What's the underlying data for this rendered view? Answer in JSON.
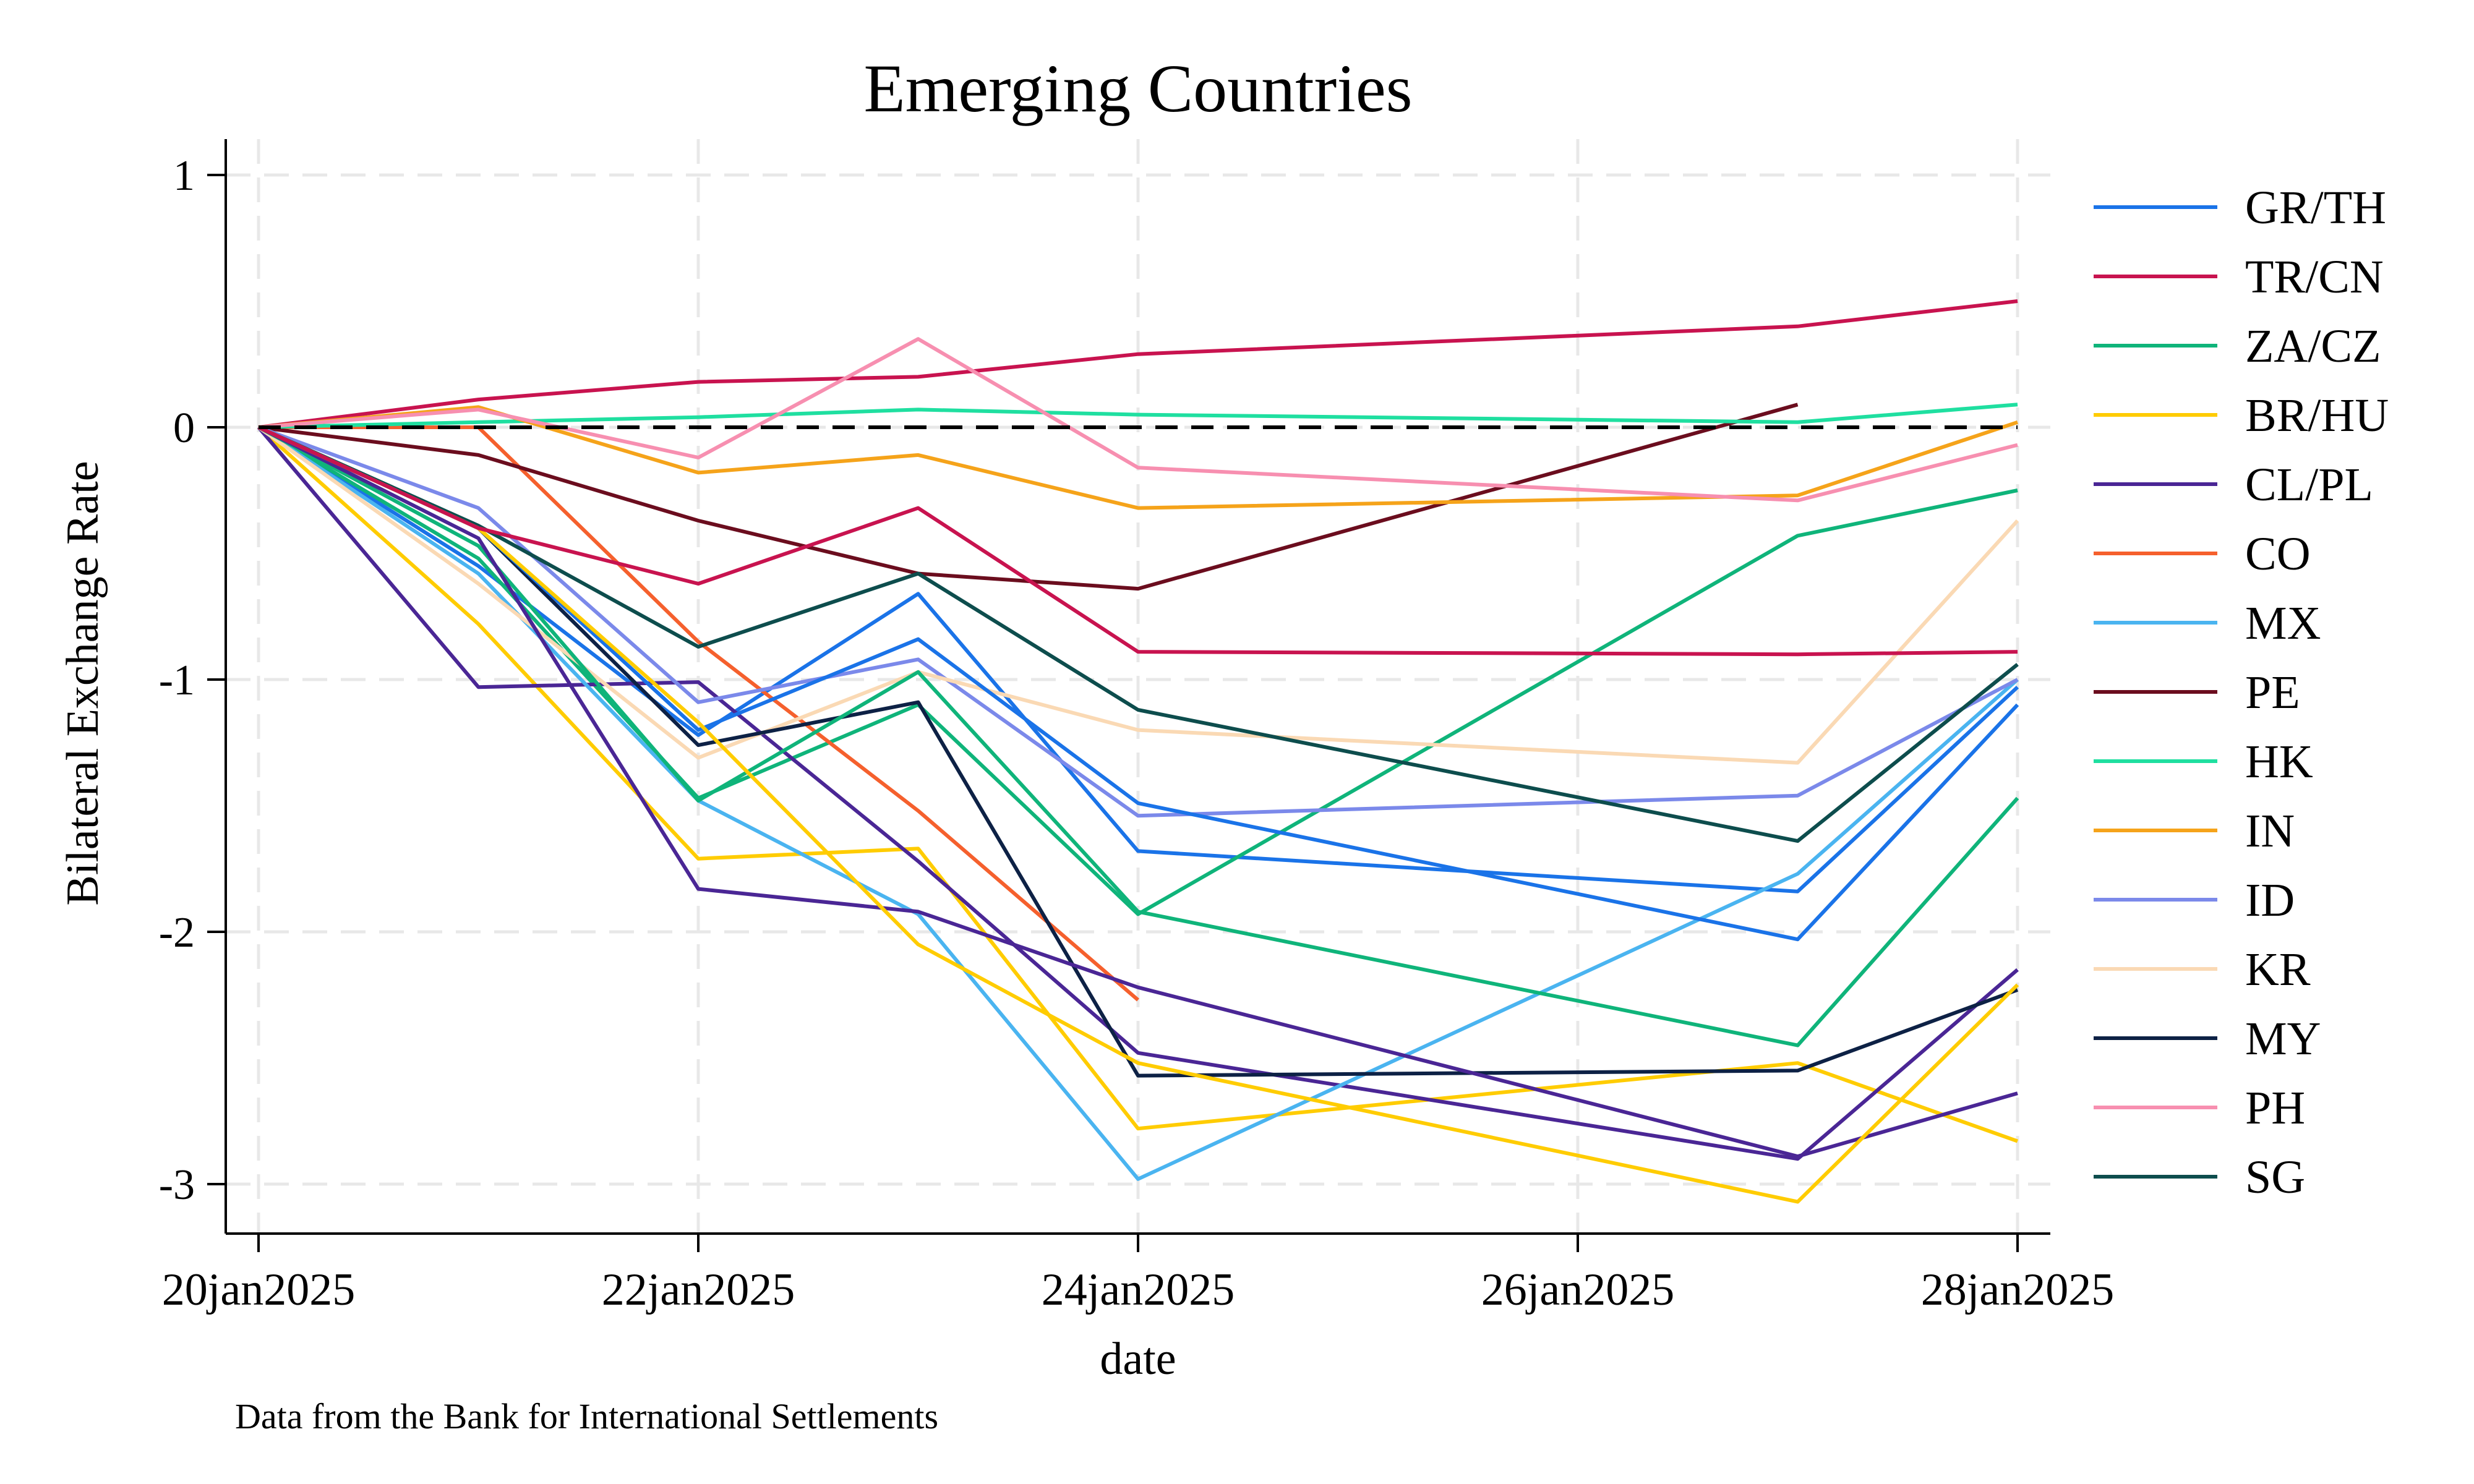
{
  "chart_data": {
    "type": "line",
    "title": "Emerging Countries",
    "xlabel": "date",
    "ylabel": "Bilateral Exchange Rate",
    "note": "Data from the Bank for International Settlements",
    "x": [
      "20jan2025",
      "21jan2025",
      "22jan2025",
      "23jan2025",
      "24jan2025",
      "27jan2025",
      "28jan2025"
    ],
    "xticks": [
      {
        "date": "20jan2025",
        "label": "20jan2025"
      },
      {
        "date": "22jan2025",
        "label": "22jan2025"
      },
      {
        "date": "24jan2025",
        "label": "24jan2025"
      },
      {
        "date": "26jan2025",
        "label": "26jan2025"
      },
      {
        "date": "28jan2025",
        "label": "28jan2025"
      }
    ],
    "yticks": [
      1,
      0,
      -1,
      -2,
      -3
    ],
    "ytick_labels": [
      "1",
      "0",
      "-1",
      "-2",
      "-3"
    ],
    "xlim": [
      "20jan2025",
      "28jan2025"
    ],
    "ylim": [
      -3.2,
      1.15
    ],
    "reference_line": {
      "y": 0,
      "style": "dashed",
      "color": "#000000"
    },
    "grid": true,
    "legend": "right",
    "series": [
      {
        "name": "GR/TH",
        "color": "#1a73e8",
        "values": [
          0,
          -0.55,
          -1.22,
          -0.66,
          -1.68,
          -1.84,
          -1.03
        ]
      },
      {
        "name": "TR/CN",
        "color": "#c8134f",
        "values": [
          0,
          0.11,
          0.18,
          0.2,
          0.29,
          0.4,
          0.5
        ]
      },
      {
        "name": "ZA/CZ",
        "color": "#0fb47a",
        "values": [
          0,
          -0.52,
          -1.47,
          -1.1,
          -1.93,
          -0.43,
          -0.25
        ]
      },
      {
        "name": "BR/HU",
        "color": "#ffcc00",
        "values": [
          0,
          -0.78,
          -1.71,
          -1.67,
          -2.78,
          -2.52,
          -2.83
        ]
      },
      {
        "name": "CL/PL",
        "color": "#4a2695",
        "values": [
          0,
          -1.03,
          -1.01,
          -1.72,
          -2.48,
          -2.9,
          -2.15
        ]
      },
      {
        "name": "CO",
        "color": "#f5602d",
        "values": [
          0,
          0.0,
          -0.85,
          -1.52,
          -2.27,
          null,
          null
        ]
      },
      {
        "name": "MX",
        "color": "#4ab4f0",
        "values": [
          0,
          -0.58,
          -1.48,
          -1.93,
          -2.98,
          -1.77,
          -1.0
        ]
      },
      {
        "name": "PE",
        "color": "#6b0d1e",
        "values": [
          0,
          -0.11,
          -0.37,
          -0.58,
          -0.64,
          0.09,
          null
        ]
      },
      {
        "name": "HK",
        "color": "#1fdfa0",
        "values": [
          0,
          0.02,
          0.04,
          0.07,
          0.05,
          0.02,
          0.09
        ]
      },
      {
        "name": "IN",
        "color": "#f5a31a",
        "values": [
          0,
          0.08,
          -0.18,
          -0.11,
          -0.32,
          -0.27,
          0.02
        ]
      },
      {
        "name": "ID",
        "color": "#7b89ea",
        "values": [
          0,
          -0.32,
          -1.09,
          -0.92,
          -1.54,
          -1.46,
          -1.0
        ]
      },
      {
        "name": "KR",
        "color": "#fad9b4",
        "values": [
          0,
          -0.62,
          -1.31,
          -0.97,
          -1.2,
          -1.33,
          -0.37
        ]
      },
      {
        "name": "MY",
        "color": "#0d2145",
        "values": [
          0,
          -0.4,
          -1.26,
          -1.09,
          -2.57,
          -2.55,
          -2.23
        ]
      },
      {
        "name": "PH",
        "color": "#f78fb0",
        "values": [
          0,
          0.07,
          -0.12,
          0.35,
          -0.16,
          -0.29,
          -0.07
        ]
      },
      {
        "name": "SG",
        "color": "#0d4d4d",
        "values": [
          0,
          -0.39,
          -0.87,
          -0.58,
          -1.12,
          -1.64,
          -0.94
        ]
      },
      {
        "values": [
          0,
          -0.47,
          -1.48,
          -0.97,
          -1.92,
          -2.45,
          -1.47
        ],
        "color": "#0fb47a"
      },
      {
        "values": [
          0,
          -0.4,
          -1.2,
          -0.84,
          -1.49,
          -2.03,
          -1.1
        ],
        "color": "#1a73e8"
      },
      {
        "values": [
          0,
          -0.44,
          -1.83,
          -1.92,
          -2.22,
          -2.89,
          -2.64
        ],
        "color": "#4a2695"
      },
      {
        "values": [
          0,
          -0.4,
          -1.17,
          -2.05,
          -2.52,
          -3.07,
          -2.21
        ],
        "color": "#ffcc00"
      },
      {
        "values": [
          0,
          -0.4,
          -0.62,
          -0.32,
          -0.89,
          -0.9,
          -0.89
        ],
        "color": "#c8134f"
      }
    ]
  }
}
